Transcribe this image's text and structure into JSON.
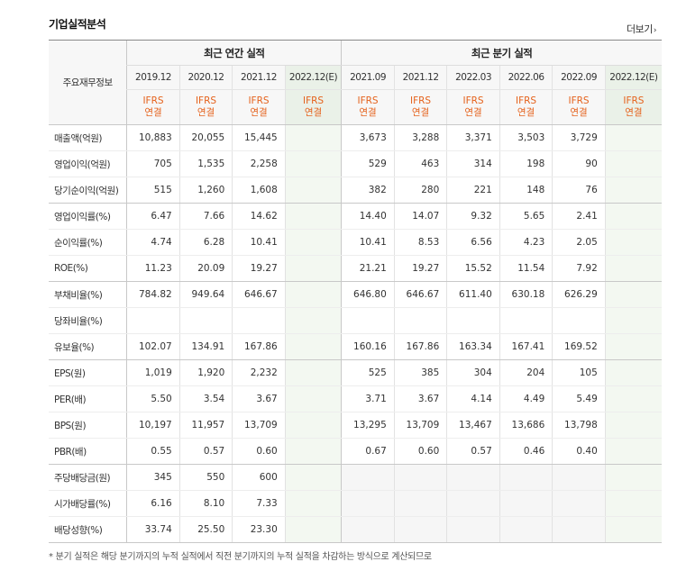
{
  "title": "기업실적분석",
  "more_label": "더보기",
  "header": {
    "item_label": "주요재무정보",
    "annual_label": "최근 연간 실적",
    "quarter_label": "최근 분기 실적",
    "annual_periods": [
      "2019.12",
      "2020.12",
      "2021.12",
      "2022.12(E)"
    ],
    "quarter_periods": [
      "2021.09",
      "2021.12",
      "2022.03",
      "2022.06",
      "2022.09",
      "2022.12(E)"
    ],
    "ifrs_line1": "IFRS",
    "ifrs_line2": "연결"
  },
  "rows": [
    {
      "label": "매출액(억원)",
      "annual": [
        "10,883",
        "20,055",
        "15,445",
        ""
      ],
      "quarter": [
        "3,673",
        "3,288",
        "3,371",
        "3,503",
        "3,729",
        ""
      ]
    },
    {
      "label": "영업이익(억원)",
      "annual": [
        "705",
        "1,535",
        "2,258",
        ""
      ],
      "quarter": [
        "529",
        "463",
        "314",
        "198",
        "90",
        ""
      ]
    },
    {
      "label": "당기순이익(억원)",
      "annual": [
        "515",
        "1,260",
        "1,608",
        ""
      ],
      "quarter": [
        "382",
        "280",
        "221",
        "148",
        "76",
        ""
      ]
    },
    {
      "label": "영업이익률(%)",
      "annual": [
        "6.47",
        "7.66",
        "14.62",
        ""
      ],
      "quarter": [
        "14.40",
        "14.07",
        "9.32",
        "5.65",
        "2.41",
        ""
      ]
    },
    {
      "label": "순이익률(%)",
      "annual": [
        "4.74",
        "6.28",
        "10.41",
        ""
      ],
      "quarter": [
        "10.41",
        "8.53",
        "6.56",
        "4.23",
        "2.05",
        ""
      ]
    },
    {
      "label": "ROE(%)",
      "annual": [
        "11.23",
        "20.09",
        "19.27",
        ""
      ],
      "quarter": [
        "21.21",
        "19.27",
        "15.52",
        "11.54",
        "7.92",
        ""
      ]
    },
    {
      "label": "부채비율(%)",
      "annual": [
        "784.82",
        "949.64",
        "646.67",
        ""
      ],
      "quarter": [
        "646.80",
        "646.67",
        "611.40",
        "630.18",
        "626.29",
        ""
      ]
    },
    {
      "label": "당좌비율(%)",
      "annual": [
        "",
        "",
        "",
        ""
      ],
      "quarter": [
        "",
        "",
        "",
        "",
        "",
        ""
      ]
    },
    {
      "label": "유보율(%)",
      "annual": [
        "102.07",
        "134.91",
        "167.86",
        ""
      ],
      "quarter": [
        "160.16",
        "167.86",
        "163.34",
        "167.41",
        "169.52",
        ""
      ]
    },
    {
      "label": "EPS(원)",
      "annual": [
        "1,019",
        "1,920",
        "2,232",
        ""
      ],
      "quarter": [
        "525",
        "385",
        "304",
        "204",
        "105",
        ""
      ]
    },
    {
      "label": "PER(배)",
      "annual": [
        "5.50",
        "3.54",
        "3.67",
        ""
      ],
      "quarter": [
        "3.71",
        "3.67",
        "4.14",
        "4.49",
        "5.49",
        ""
      ]
    },
    {
      "label": "BPS(원)",
      "annual": [
        "10,197",
        "11,957",
        "13,709",
        ""
      ],
      "quarter": [
        "13,295",
        "13,709",
        "13,467",
        "13,686",
        "13,798",
        ""
      ]
    },
    {
      "label": "PBR(배)",
      "annual": [
        "0.55",
        "0.57",
        "0.60",
        ""
      ],
      "quarter": [
        "0.67",
        "0.60",
        "0.57",
        "0.46",
        "0.40",
        ""
      ]
    },
    {
      "label": "주당배당금(원)",
      "annual": [
        "345",
        "550",
        "600",
        ""
      ],
      "quarter": [
        "",
        "",
        "",
        "",
        "",
        ""
      ]
    },
    {
      "label": "시가배당률(%)",
      "annual": [
        "6.16",
        "8.10",
        "7.33",
        ""
      ],
      "quarter": [
        "",
        "",
        "",
        "",
        "",
        ""
      ]
    },
    {
      "label": "배당성향(%)",
      "annual": [
        "33.74",
        "25.50",
        "23.30",
        ""
      ],
      "quarter": [
        "",
        "",
        "",
        "",
        "",
        ""
      ]
    }
  ],
  "footnote": "* 분기 실적은 해당 분기까지의 누적 실적에서 직전 분기까지의 누적 실적을 차감하는 방식으로 계산되므로"
}
